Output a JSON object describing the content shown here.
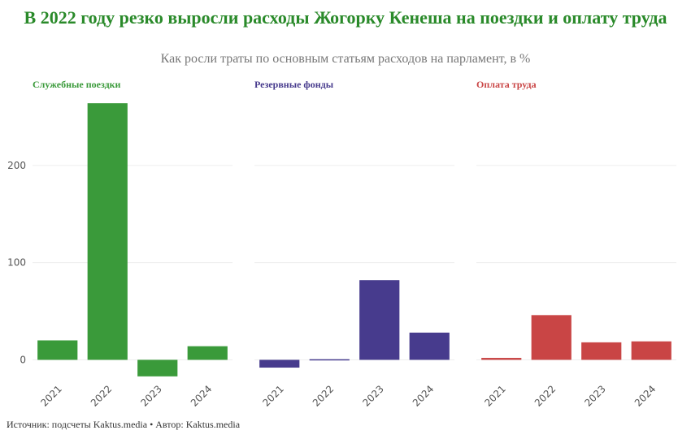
{
  "title": "В 2022 году резко выросли расходы Жогорку Кенеша на поездки и оплату труда",
  "subtitle": "Как росли траты по основным статьям расходов на парламент, в %",
  "source": "Источник: подсчеты Kaktus.media • Автор: Kaktus.media",
  "chart_data": {
    "type": "bar",
    "categories": [
      "2021",
      "2022",
      "2023",
      "2024"
    ],
    "ylim": [
      -18,
      270
    ],
    "yticks": [
      0,
      100,
      200
    ],
    "grid": true,
    "series": [
      {
        "name": "Служебные поездки",
        "color": "#3a9a3a",
        "values": [
          20,
          264,
          -17,
          14
        ]
      },
      {
        "name": "Резервные фонды",
        "color": "#473b8d",
        "values": [
          -8,
          -1,
          82,
          28
        ]
      },
      {
        "name": "Оплата труда",
        "color": "#c94545",
        "values": [
          2,
          46,
          18,
          19
        ]
      }
    ]
  }
}
